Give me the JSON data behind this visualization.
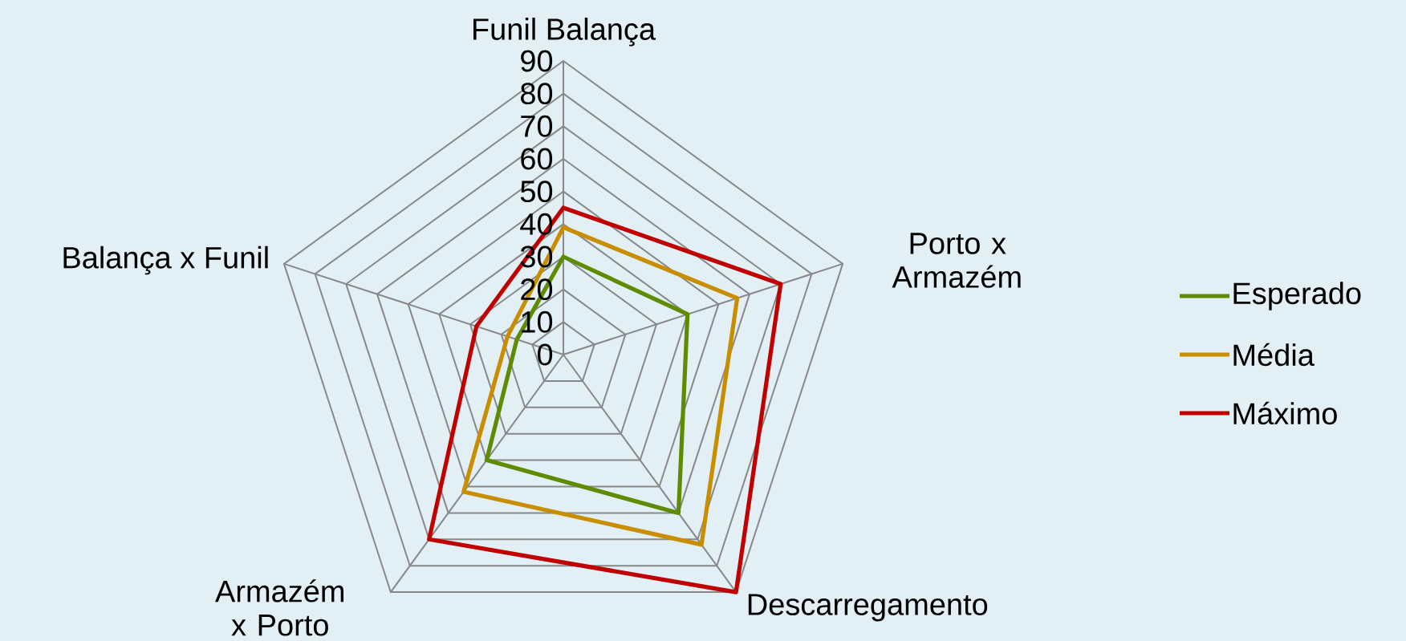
{
  "chart_data": {
    "type": "radar",
    "categories": [
      "Funil Balança",
      "Porto x Armazém",
      "Descarregamento",
      "Armazém x Porto",
      "Balança x Funil"
    ],
    "series": [
      {
        "name": "Esperado",
        "color": "#5f8b00",
        "values": [
          30,
          40,
          60,
          40,
          15
        ]
      },
      {
        "name": "Média",
        "color": "#c88e00",
        "values": [
          39,
          56,
          72,
          52,
          18
        ]
      },
      {
        "name": "Máximo",
        "color": "#c00000",
        "values": [
          45,
          70,
          90,
          70,
          28
        ]
      }
    ],
    "ylim": [
      0,
      90
    ],
    "yticks": [
      0,
      10,
      20,
      30,
      40,
      50,
      60,
      70,
      80,
      90
    ],
    "grid": true,
    "legend": "right"
  }
}
